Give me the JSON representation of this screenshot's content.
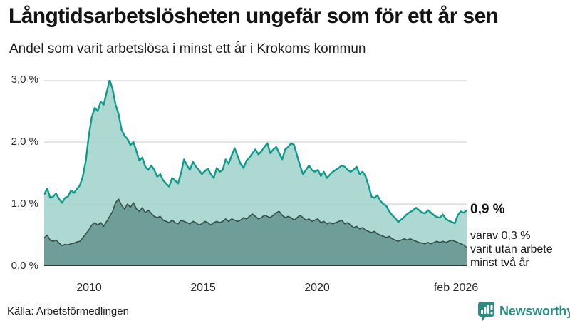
{
  "annotation": {
    "value_label": "0,9 %",
    "note_lines": [
      "varav 0,3 %",
      "varit utan arbete",
      "minst två år"
    ]
  },
  "footer": {
    "source": "Källa: Arbetsförmedlingen",
    "logo_text": "Newsworthy"
  },
  "colors": {
    "accent_teal": "#0d9b8c",
    "fill_light": "#a5d4cd",
    "fill_dark": "#6f9e99",
    "line_dark": "#324f4a",
    "gridline": "#dcdcdc",
    "baseline": "#2c3e3c",
    "logo_teal": "#2e8c82"
  },
  "chart_data": {
    "type": "area",
    "title": "Långtidsarbetslösheten ungefär som för ett år sen",
    "subtitle": "Andel som varit arbetslösa i minst ett år i Krokoms kommun",
    "unit": "%",
    "ylim": [
      0,
      3
    ],
    "grid": "horizontal",
    "legend_position": "end-of-line-annotation",
    "y_tick_labels": [
      "3,0 %",
      "2,0 %",
      "1,0 %",
      "0,0 %"
    ],
    "x_tick_labels": [
      "2010",
      "2015",
      "2020",
      "feb 2026"
    ],
    "series": [
      {
        "name": "Andel som varit arbetslösa i minst ett år",
        "end_value": 0.9,
        "end_label": "0,9 %",
        "line_color": "#0d9b8c",
        "fill_color": "#a5d4cd",
        "fill_opacity": 0.9,
        "values": [
          1.15,
          1.25,
          1.1,
          1.12,
          1.17,
          1.08,
          1.02,
          1.1,
          1.12,
          1.22,
          1.18,
          1.24,
          1.3,
          1.45,
          1.7,
          2.1,
          2.4,
          2.55,
          2.5,
          2.65,
          2.6,
          2.8,
          3.0,
          2.85,
          2.6,
          2.45,
          2.2,
          2.1,
          2.05,
          1.95,
          2.0,
          1.85,
          1.7,
          1.75,
          1.6,
          1.55,
          1.62,
          1.55,
          1.44,
          1.48,
          1.38,
          1.33,
          1.28,
          1.42,
          1.38,
          1.33,
          1.5,
          1.72,
          1.62,
          1.55,
          1.68,
          1.6,
          1.55,
          1.48,
          1.53,
          1.57,
          1.48,
          1.42,
          1.58,
          1.52,
          1.55,
          1.72,
          1.65,
          1.78,
          1.9,
          1.78,
          1.65,
          1.58,
          1.7,
          1.75,
          1.82,
          1.88,
          1.8,
          1.85,
          1.92,
          1.98,
          1.82,
          1.88,
          1.92,
          1.82,
          1.72,
          1.88,
          1.92,
          1.98,
          1.95,
          1.78,
          1.62,
          1.48,
          1.55,
          1.62,
          1.55,
          1.52,
          1.55,
          1.45,
          1.52,
          1.42,
          1.47,
          1.52,
          1.55,
          1.58,
          1.62,
          1.6,
          1.55,
          1.52,
          1.55,
          1.6,
          1.48,
          1.52,
          1.45,
          1.3,
          1.12,
          1.1,
          1.14,
          1.05,
          1.0,
          0.97,
          0.88,
          0.82,
          0.77,
          0.71,
          0.75,
          0.79,
          0.84,
          0.87,
          0.9,
          0.94,
          0.9,
          0.86,
          0.85,
          0.9,
          0.86,
          0.82,
          0.79,
          0.78,
          0.83,
          0.76,
          0.73,
          0.71,
          0.69,
          0.82,
          0.88,
          0.86,
          0.9
        ]
      },
      {
        "name": "varav varit utan arbete minst två år",
        "end_value": 0.3,
        "end_label": "varav 0,3 %",
        "line_color": "#324f4a",
        "fill_color": "#6f9e99",
        "fill_opacity": 1,
        "values": [
          0.45,
          0.5,
          0.42,
          0.4,
          0.42,
          0.37,
          0.33,
          0.35,
          0.34,
          0.36,
          0.37,
          0.39,
          0.4,
          0.46,
          0.52,
          0.58,
          0.66,
          0.7,
          0.66,
          0.7,
          0.64,
          0.72,
          0.8,
          0.88,
          1.02,
          1.08,
          0.98,
          0.92,
          1.0,
          0.95,
          1.02,
          0.92,
          0.88,
          0.94,
          0.86,
          0.9,
          0.85,
          0.8,
          0.78,
          0.8,
          0.74,
          0.72,
          0.7,
          0.74,
          0.7,
          0.68,
          0.74,
          0.72,
          0.7,
          0.68,
          0.72,
          0.7,
          0.66,
          0.68,
          0.72,
          0.7,
          0.66,
          0.7,
          0.72,
          0.7,
          0.72,
          0.76,
          0.72,
          0.76,
          0.74,
          0.72,
          0.74,
          0.78,
          0.76,
          0.8,
          0.84,
          0.8,
          0.76,
          0.78,
          0.82,
          0.8,
          0.78,
          0.82,
          0.86,
          0.88,
          0.82,
          0.78,
          0.8,
          0.78,
          0.74,
          0.78,
          0.82,
          0.78,
          0.74,
          0.76,
          0.72,
          0.74,
          0.76,
          0.7,
          0.72,
          0.68,
          0.7,
          0.68,
          0.7,
          0.72,
          0.74,
          0.68,
          0.7,
          0.66,
          0.62,
          0.64,
          0.6,
          0.62,
          0.58,
          0.56,
          0.54,
          0.56,
          0.52,
          0.5,
          0.48,
          0.46,
          0.48,
          0.44,
          0.42,
          0.4,
          0.42,
          0.44,
          0.42,
          0.44,
          0.42,
          0.4,
          0.38,
          0.37,
          0.36,
          0.38,
          0.36,
          0.38,
          0.4,
          0.38,
          0.4,
          0.38,
          0.4,
          0.42,
          0.4,
          0.38,
          0.36,
          0.34,
          0.3
        ]
      }
    ]
  }
}
